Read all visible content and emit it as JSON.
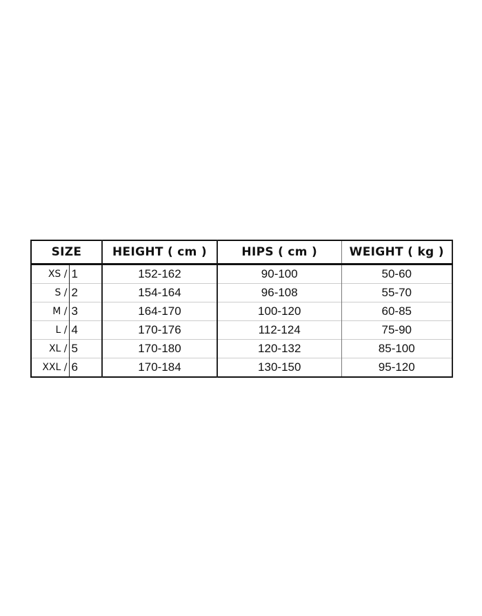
{
  "table": {
    "headers": [
      "SIZE",
      "HEIGHT ( cm )",
      "HIPS ( cm )",
      "WEIGHT ( kg )"
    ],
    "rows": [
      {
        "size": "XS /",
        "num": "1",
        "height": "152-162",
        "hips": "90-100",
        "weight": "50-60"
      },
      {
        "size": "S /",
        "num": "2",
        "height": "154-164",
        "hips": "96-108",
        "weight": "55-70"
      },
      {
        "size": "M /",
        "num": "3",
        "height": "164-170",
        "hips": "100-120",
        "weight": "60-85"
      },
      {
        "size": "L /",
        "num": "4",
        "height": "170-176",
        "hips": "112-124",
        "weight": "75-90"
      },
      {
        "size": "XL /",
        "num": "5",
        "height": "170-180",
        "hips": "120-132",
        "weight": "85-100"
      },
      {
        "size": "XXL /",
        "num": "6",
        "height": "170-184",
        "hips": "130-150",
        "weight": "95-120"
      }
    ]
  }
}
